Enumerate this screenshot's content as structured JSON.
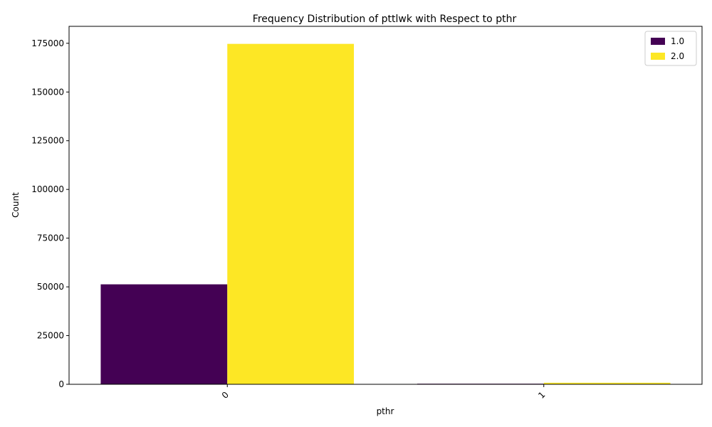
{
  "chart_data": {
    "type": "bar",
    "title": "Frequency Distribution of pttlwk with Respect to pthr",
    "xlabel": "pthr",
    "ylabel": "Count",
    "categories": [
      "0",
      "1"
    ],
    "series": [
      {
        "name": "1.0",
        "color": "#440154",
        "values": [
          51300,
          300
        ]
      },
      {
        "name": "2.0",
        "color": "#fde725",
        "values": [
          174700,
          800
        ]
      }
    ],
    "ylim": [
      0,
      183700
    ],
    "yticks": [
      0,
      25000,
      50000,
      75000,
      100000,
      125000,
      150000,
      175000
    ],
    "legend_position": "top-right",
    "grid": false
  }
}
